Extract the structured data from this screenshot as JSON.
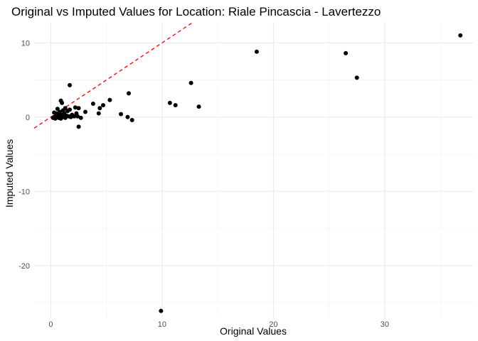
{
  "chart_data": {
    "type": "scatter",
    "title": "Original vs Imputed Values for Location: Riale Pincascia - Lavertezzo",
    "xlabel": "Original Values",
    "ylabel": "Imputed Values",
    "xlim": [
      -1.5,
      38.0
    ],
    "ylim": [
      -27.0,
      12.8
    ],
    "x_ticks": [
      0,
      10,
      20,
      30
    ],
    "y_ticks": [
      -20,
      -10,
      0,
      10
    ],
    "x_minor": [
      5,
      15,
      25,
      35
    ],
    "y_minor": [
      -25,
      -15,
      -5,
      5
    ],
    "grid": true,
    "reference_line": {
      "type": "identity",
      "slope": 1,
      "intercept": 0,
      "color": "#ff0000",
      "style": "dashed"
    },
    "point_color": "#000000",
    "points": [
      {
        "x": 0.2,
        "y": -0.1
      },
      {
        "x": 0.3,
        "y": 0.6
      },
      {
        "x": 0.3,
        "y": 0.0
      },
      {
        "x": 0.4,
        "y": -0.2
      },
      {
        "x": 0.5,
        "y": 0.2
      },
      {
        "x": 0.5,
        "y": 0.5
      },
      {
        "x": 0.6,
        "y": 0.0
      },
      {
        "x": 0.6,
        "y": 1.1
      },
      {
        "x": 0.7,
        "y": 0.4
      },
      {
        "x": 0.7,
        "y": -0.1
      },
      {
        "x": 0.8,
        "y": 0.7
      },
      {
        "x": 0.8,
        "y": 0.1
      },
      {
        "x": 0.9,
        "y": 2.2
      },
      {
        "x": 0.9,
        "y": -0.2
      },
      {
        "x": 1.0,
        "y": 1.9
      },
      {
        "x": 1.0,
        "y": 0.3
      },
      {
        "x": 1.1,
        "y": 0.9
      },
      {
        "x": 1.1,
        "y": 0.0
      },
      {
        "x": 1.2,
        "y": 0.5
      },
      {
        "x": 1.3,
        "y": 1.2
      },
      {
        "x": 1.3,
        "y": -0.1
      },
      {
        "x": 1.4,
        "y": 0.2
      },
      {
        "x": 1.5,
        "y": 0.8
      },
      {
        "x": 1.6,
        "y": 0.1
      },
      {
        "x": 1.7,
        "y": 1.0
      },
      {
        "x": 1.7,
        "y": 4.3
      },
      {
        "x": 1.8,
        "y": 0.0
      },
      {
        "x": 1.9,
        "y": 0.3
      },
      {
        "x": 2.1,
        "y": 0.1
      },
      {
        "x": 2.2,
        "y": 1.3
      },
      {
        "x": 2.3,
        "y": 0.5
      },
      {
        "x": 2.4,
        "y": 0.1
      },
      {
        "x": 2.5,
        "y": 1.2
      },
      {
        "x": 2.5,
        "y": -1.3
      },
      {
        "x": 2.7,
        "y": -0.1
      },
      {
        "x": 3.1,
        "y": 0.7
      },
      {
        "x": 3.8,
        "y": 1.8
      },
      {
        "x": 4.3,
        "y": 0.5
      },
      {
        "x": 4.4,
        "y": 1.2
      },
      {
        "x": 4.7,
        "y": 1.6
      },
      {
        "x": 5.3,
        "y": 2.3
      },
      {
        "x": 6.3,
        "y": 0.4
      },
      {
        "x": 6.9,
        "y": 0.0
      },
      {
        "x": 7.0,
        "y": 3.2
      },
      {
        "x": 7.3,
        "y": -0.4
      },
      {
        "x": 9.9,
        "y": -26.1
      },
      {
        "x": 10.7,
        "y": 1.9
      },
      {
        "x": 11.2,
        "y": 1.6
      },
      {
        "x": 12.6,
        "y": 4.6
      },
      {
        "x": 13.3,
        "y": 1.4
      },
      {
        "x": 18.5,
        "y": 8.8
      },
      {
        "x": 26.5,
        "y": 8.6
      },
      {
        "x": 27.5,
        "y": 5.3
      },
      {
        "x": 36.8,
        "y": 11.0
      }
    ]
  }
}
